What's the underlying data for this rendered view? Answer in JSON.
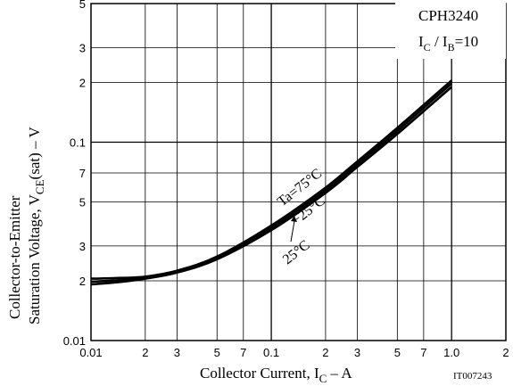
{
  "chart_data": {
    "type": "line",
    "title": "CPH3240",
    "condition": {
      "base": "I",
      "sub1": "C",
      "mid": " / I",
      "sub2": "B",
      "tail": "=10"
    },
    "xlabel": {
      "main": "Collector Current, I",
      "sub": "C",
      "unit": " – A"
    },
    "ylabel": {
      "line1": "Collector-to-Emitter",
      "line2_main": "Saturation Voltage, V",
      "line2_sub": "CE",
      "line2_tail": "(sat) – V"
    },
    "x_scale": "log",
    "y_scale": "log",
    "xlim": [
      0.01,
      2
    ],
    "ylim": [
      0.01,
      0.5
    ],
    "grid": true,
    "x_major_ticks": [
      {
        "v": 0.01,
        "label": "0.01"
      },
      {
        "v": 0.02,
        "label": "2"
      },
      {
        "v": 0.03,
        "label": "3"
      },
      {
        "v": 0.05,
        "label": "5"
      },
      {
        "v": 0.07,
        "label": "7"
      },
      {
        "v": 0.1,
        "label": "0.1"
      },
      {
        "v": 0.2,
        "label": "2"
      },
      {
        "v": 0.3,
        "label": "3"
      },
      {
        "v": 0.5,
        "label": "5"
      },
      {
        "v": 0.7,
        "label": "7"
      },
      {
        "v": 1.0,
        "label": "1.0"
      },
      {
        "v": 2.0,
        "label": "2"
      }
    ],
    "y_major_ticks": [
      {
        "v": 0.01,
        "label": "0.01"
      },
      {
        "v": 0.02,
        "label": "2"
      },
      {
        "v": 0.03,
        "label": "3"
      },
      {
        "v": 0.05,
        "label": "5"
      },
      {
        "v": 0.07,
        "label": "7"
      },
      {
        "v": 0.1,
        "label": "0.1"
      },
      {
        "v": 0.2,
        "label": "2"
      },
      {
        "v": 0.3,
        "label": "3"
      },
      {
        "v": 0.5,
        "label": "5"
      }
    ],
    "series": [
      {
        "name": "Ta=75°C",
        "x": [
          0.01,
          0.015,
          0.02,
          0.03,
          0.05,
          0.1,
          0.2,
          0.3,
          0.5,
          1.0
        ],
        "y": [
          0.0205,
          0.0207,
          0.021,
          0.0225,
          0.0265,
          0.038,
          0.059,
          0.08,
          0.118,
          0.205
        ]
      },
      {
        "name": "−25°C",
        "x": [
          0.01,
          0.015,
          0.02,
          0.03,
          0.05,
          0.1,
          0.2,
          0.3,
          0.5,
          1.0
        ],
        "y": [
          0.0192,
          0.0198,
          0.0205,
          0.022,
          0.0257,
          0.036,
          0.0555,
          0.075,
          0.11,
          0.19
        ]
      },
      {
        "name": "25°C",
        "x": [
          0.01,
          0.015,
          0.02,
          0.03,
          0.05,
          0.1,
          0.2,
          0.3,
          0.5,
          1.0
        ],
        "y": [
          0.0198,
          0.0202,
          0.0207,
          0.0222,
          0.0261,
          0.037,
          0.0572,
          0.0775,
          0.114,
          0.198
        ]
      }
    ],
    "annotations": [
      "Ta=75°C",
      "−25°C",
      "25°C"
    ],
    "code": "IT007243"
  }
}
